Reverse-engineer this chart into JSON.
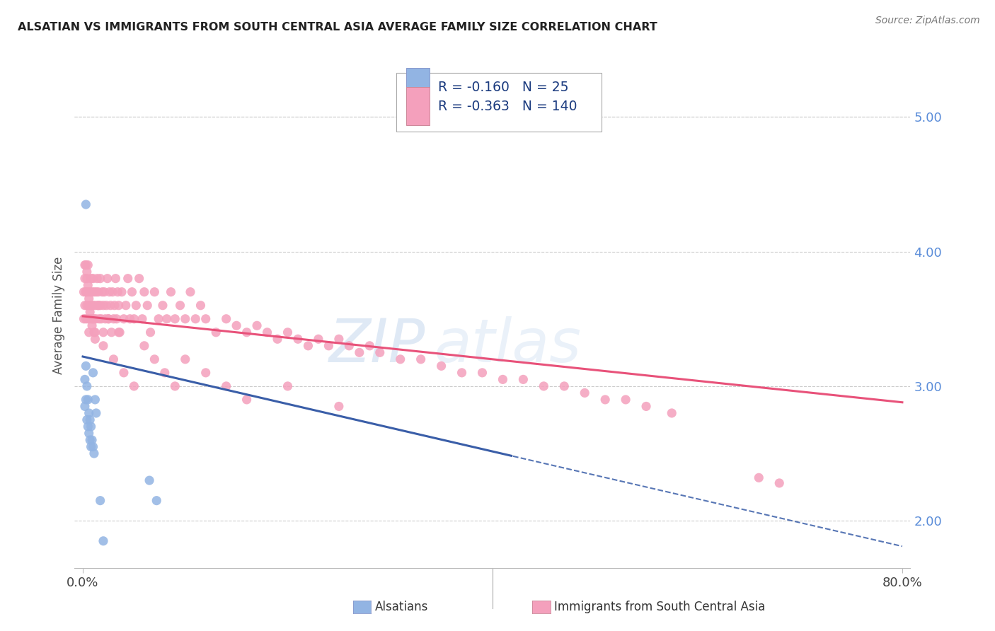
{
  "title": "ALSATIAN VS IMMIGRANTS FROM SOUTH CENTRAL ASIA AVERAGE FAMILY SIZE CORRELATION CHART",
  "source": "Source: ZipAtlas.com",
  "ylabel": "Average Family Size",
  "right_ytick_labels": [
    "2.00",
    "3.00",
    "4.00",
    "5.00"
  ],
  "right_ytick_vals": [
    2.0,
    3.0,
    4.0,
    5.0
  ],
  "xlim": [
    0.0,
    0.8
  ],
  "ylim": [
    1.65,
    5.4
  ],
  "legend_blue_R": "-0.160",
  "legend_blue_N": "25",
  "legend_pink_R": "-0.363",
  "legend_pink_N": "140",
  "blue_scatter_color": "#92B4E3",
  "pink_scatter_color": "#F4A0BC",
  "trend_blue_color": "#3A5EA8",
  "trend_pink_color": "#E8527A",
  "watermark_color": "#C5D8EE",
  "watermark_text": "ZIP atlas",
  "grid_color": "#CCCCCC",
  "title_color": "#222222",
  "source_color": "#777777",
  "tick_label_color": "#5B8DD9",
  "legend_text_blue_color": "#1A3A7E",
  "legend_text_pink_color": "#B5003A",
  "blue_x": [
    0.002,
    0.002,
    0.003,
    0.003,
    0.004,
    0.004,
    0.005,
    0.005,
    0.006,
    0.006,
    0.007,
    0.007,
    0.008,
    0.008,
    0.009,
    0.01,
    0.01,
    0.011,
    0.012,
    0.013,
    0.003,
    0.017,
    0.02,
    0.065,
    0.072
  ],
  "blue_y": [
    3.05,
    2.85,
    3.15,
    2.9,
    3.0,
    2.75,
    2.9,
    2.7,
    2.8,
    2.65,
    2.75,
    2.6,
    2.55,
    2.7,
    2.6,
    3.1,
    2.55,
    2.5,
    2.9,
    2.8,
    4.35,
    2.15,
    1.85,
    2.3,
    2.15
  ],
  "pink_x": [
    0.001,
    0.001,
    0.002,
    0.002,
    0.003,
    0.003,
    0.003,
    0.004,
    0.004,
    0.005,
    0.005,
    0.005,
    0.006,
    0.006,
    0.007,
    0.007,
    0.008,
    0.008,
    0.009,
    0.009,
    0.01,
    0.01,
    0.011,
    0.011,
    0.012,
    0.012,
    0.013,
    0.013,
    0.014,
    0.015,
    0.015,
    0.016,
    0.017,
    0.017,
    0.018,
    0.019,
    0.02,
    0.02,
    0.021,
    0.022,
    0.023,
    0.024,
    0.025,
    0.026,
    0.027,
    0.028,
    0.029,
    0.03,
    0.031,
    0.032,
    0.033,
    0.034,
    0.035,
    0.036,
    0.038,
    0.04,
    0.042,
    0.044,
    0.046,
    0.048,
    0.05,
    0.052,
    0.055,
    0.058,
    0.06,
    0.063,
    0.066,
    0.07,
    0.074,
    0.078,
    0.082,
    0.086,
    0.09,
    0.095,
    0.1,
    0.105,
    0.11,
    0.115,
    0.12,
    0.13,
    0.14,
    0.15,
    0.16,
    0.17,
    0.18,
    0.19,
    0.2,
    0.21,
    0.22,
    0.23,
    0.24,
    0.25,
    0.26,
    0.27,
    0.28,
    0.29,
    0.31,
    0.33,
    0.35,
    0.37,
    0.39,
    0.41,
    0.43,
    0.45,
    0.47,
    0.49,
    0.51,
    0.53,
    0.55,
    0.575,
    0.002,
    0.003,
    0.004,
    0.005,
    0.006,
    0.007,
    0.008,
    0.009,
    0.01,
    0.011,
    0.012,
    0.015,
    0.02,
    0.025,
    0.03,
    0.035,
    0.04,
    0.05,
    0.06,
    0.07,
    0.08,
    0.09,
    0.1,
    0.12,
    0.14,
    0.16,
    0.2,
    0.25,
    0.66,
    0.68
  ],
  "pink_y": [
    3.5,
    3.7,
    3.6,
    3.8,
    3.5,
    3.7,
    3.9,
    3.6,
    3.8,
    3.5,
    3.7,
    3.9,
    3.6,
    3.4,
    3.7,
    3.5,
    3.8,
    3.6,
    3.5,
    3.7,
    3.6,
    3.8,
    3.5,
    3.7,
    3.6,
    3.4,
    3.7,
    3.5,
    3.8,
    3.6,
    3.7,
    3.5,
    3.6,
    3.8,
    3.5,
    3.7,
    3.6,
    3.4,
    3.7,
    3.5,
    3.6,
    3.8,
    3.5,
    3.7,
    3.6,
    3.4,
    3.7,
    3.5,
    3.6,
    3.8,
    3.5,
    3.7,
    3.6,
    3.4,
    3.7,
    3.5,
    3.6,
    3.8,
    3.5,
    3.7,
    3.5,
    3.6,
    3.8,
    3.5,
    3.7,
    3.6,
    3.4,
    3.7,
    3.5,
    3.6,
    3.5,
    3.7,
    3.5,
    3.6,
    3.5,
    3.7,
    3.5,
    3.6,
    3.5,
    3.4,
    3.5,
    3.45,
    3.4,
    3.45,
    3.4,
    3.35,
    3.4,
    3.35,
    3.3,
    3.35,
    3.3,
    3.35,
    3.3,
    3.25,
    3.3,
    3.25,
    3.2,
    3.2,
    3.15,
    3.1,
    3.1,
    3.05,
    3.05,
    3.0,
    3.0,
    2.95,
    2.9,
    2.9,
    2.85,
    2.8,
    3.9,
    3.7,
    3.85,
    3.75,
    3.65,
    3.55,
    3.6,
    3.45,
    3.5,
    3.4,
    3.35,
    3.6,
    3.3,
    3.5,
    3.2,
    3.4,
    3.1,
    3.0,
    3.3,
    3.2,
    3.1,
    3.0,
    3.2,
    3.1,
    3.0,
    2.9,
    3.0,
    2.85,
    2.32,
    2.28
  ]
}
